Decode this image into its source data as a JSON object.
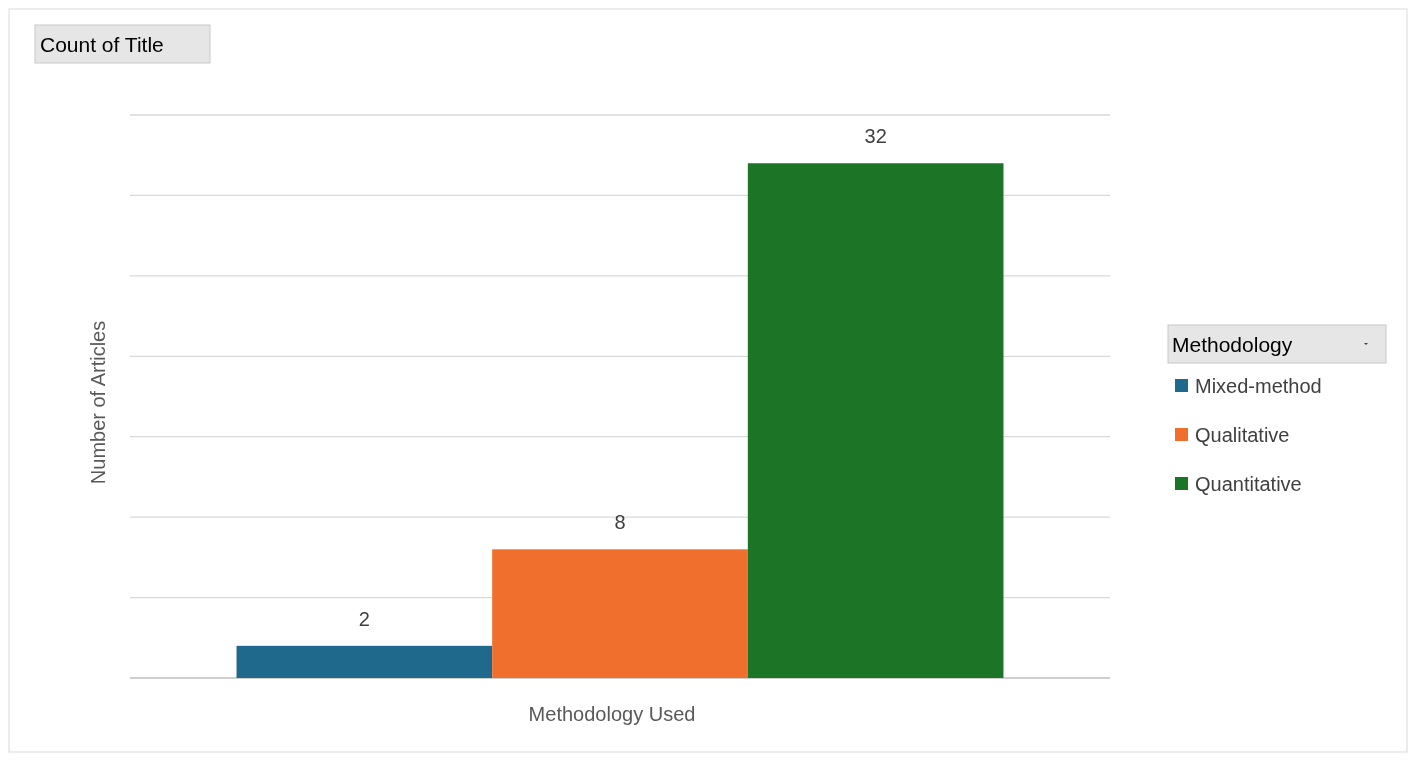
{
  "chart_data": {
    "type": "bar",
    "title": "Count of Title",
    "xlabel": "Methodology Used",
    "ylabel": "Number of Articles",
    "legend_title": "Methodology",
    "categories": [
      null
    ],
    "series": [
      {
        "name": "Mixed-method",
        "color": "#1f6a8c",
        "values": [
          2
        ]
      },
      {
        "name": "Qualitative",
        "color": "#f06f2c",
        "values": [
          8
        ]
      },
      {
        "name": "Quantitative",
        "color": "#1c7526",
        "values": [
          32
        ]
      }
    ],
    "ylim": [
      0,
      35
    ],
    "yticks": [
      {
        "value": 0,
        "label": null
      },
      {
        "value": 5,
        "label": null
      },
      {
        "value": 10,
        "label": null
      },
      {
        "value": 15,
        "label": null
      },
      {
        "value": 20,
        "label": null
      },
      {
        "value": 25,
        "label": null
      },
      {
        "value": 30,
        "label": null
      },
      {
        "value": 35,
        "label": null
      }
    ],
    "grid": "y",
    "legend": "right",
    "data_labels": true
  }
}
